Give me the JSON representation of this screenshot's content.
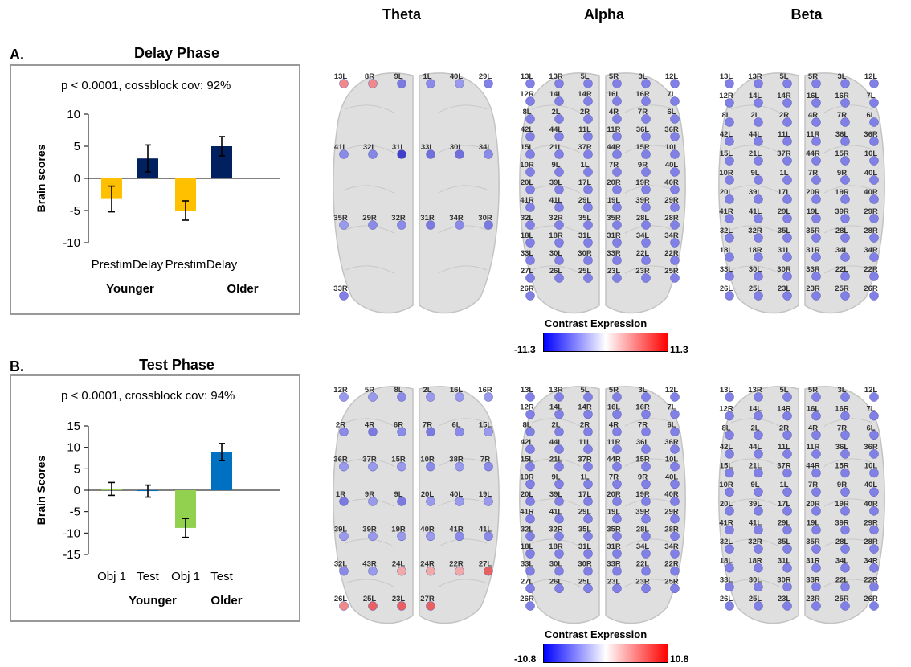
{
  "column_titles": [
    "Theta",
    "Alpha",
    "Beta"
  ],
  "panelA": {
    "label": "A.",
    "title": "Delay Phase",
    "stats": "p < 0.0001, cossblock cov: 92%",
    "colorbar": {
      "label": "Contrast Expression",
      "min": "-11.3",
      "max": "11.3"
    }
  },
  "panelB": {
    "label": "B.",
    "title": "Test Phase",
    "stats": "p < 0.0001, crossblock cov: 94%",
    "colorbar": {
      "label": "Contrast Expression",
      "min": "-10.8",
      "max": "10.8"
    }
  },
  "chart_data": [
    {
      "type": "bar",
      "ylabel": "Brain scores",
      "ylim": [
        -10,
        10
      ],
      "yticks": [
        10,
        5,
        0,
        -5,
        -10
      ],
      "categories": [
        "Prestim",
        "Delay",
        "Prestim",
        "Delay"
      ],
      "groups": [
        "Younger",
        "Older"
      ],
      "values": [
        -3.2,
        3.1,
        -5.0,
        5.0
      ],
      "errors": [
        2.0,
        2.1,
        1.5,
        1.5
      ],
      "colors": [
        "#FFC000",
        "#002060",
        "#FFC000",
        "#002060"
      ],
      "grid": false
    },
    {
      "type": "bar",
      "ylabel": "Brain Scores",
      "ylim": [
        -15,
        15
      ],
      "yticks": [
        15,
        10,
        5,
        0,
        -5,
        -10,
        -15
      ],
      "categories": [
        "Obj 1",
        "Test",
        "Obj 1",
        "Test"
      ],
      "groups": [
        "Younger",
        "Older"
      ],
      "values": [
        0.3,
        -0.2,
        -8.8,
        8.9
      ],
      "errors": [
        1.5,
        1.4,
        2.2,
        2.0
      ],
      "colors": [
        "#92D050",
        "#0070C0",
        "#92D050",
        "#0070C0"
      ],
      "grid": false
    }
  ],
  "brain_maps": {
    "theta_delay": [
      {
        "label": "13L",
        "c": "#f08a8a"
      },
      {
        "label": "8R",
        "c": "#f08a8a"
      },
      {
        "label": "9L",
        "c": "#7a7ae0"
      },
      {
        "label": "1L",
        "c": "#8a8ae8"
      },
      {
        "label": "40L",
        "c": "#9a9aec"
      },
      {
        "label": "29L",
        "c": "#8080e6"
      },
      {
        "label": "41L",
        "c": "#8a8ae8"
      },
      {
        "label": "32L",
        "c": "#8686e6"
      },
      {
        "label": "31L",
        "c": "#4040cc"
      },
      {
        "label": "33L",
        "c": "#7070dc"
      },
      {
        "label": "30L",
        "c": "#7070dc"
      },
      {
        "label": "34L",
        "c": "#8a8ae8"
      },
      {
        "label": "35R",
        "c": "#9a9aec"
      },
      {
        "label": "29R",
        "c": "#8a8ae8"
      },
      {
        "label": "32R",
        "c": "#8a8ae8"
      },
      {
        "label": "31R",
        "c": "#7a7ae0"
      },
      {
        "label": "34R",
        "c": "#8a8ae8"
      },
      {
        "label": "30R",
        "c": "#7a7ae0"
      },
      {
        "label": "33R",
        "c": "#8080e6"
      }
    ],
    "theta_test": [
      {
        "label": "12R",
        "c": "#9a9aec"
      },
      {
        "label": "5R",
        "c": "#9a9aec"
      },
      {
        "label": "8L",
        "c": "#8a8ae8"
      },
      {
        "label": "2L",
        "c": "#9a9aec"
      },
      {
        "label": "16L",
        "c": "#9a9aec"
      },
      {
        "label": "16R",
        "c": "#9a9aec"
      },
      {
        "label": "2R",
        "c": "#8a8ae8"
      },
      {
        "label": "4R",
        "c": "#7a7ae0"
      },
      {
        "label": "6R",
        "c": "#8a8ae8"
      },
      {
        "label": "7R",
        "c": "#7a7ae0"
      },
      {
        "label": "6L",
        "c": "#8a8ae8"
      },
      {
        "label": "15L",
        "c": "#9a9aec"
      },
      {
        "label": "36R",
        "c": "#9a9aec"
      },
      {
        "label": "37R",
        "c": "#9a9aec"
      },
      {
        "label": "15R",
        "c": "#9a9aec"
      },
      {
        "label": "10R",
        "c": "#8a8ae8"
      },
      {
        "label": "38R",
        "c": "#9a9aec"
      },
      {
        "label": "7R",
        "c": "#8a8ae8"
      },
      {
        "label": "1R",
        "c": "#7a7ae0"
      },
      {
        "label": "9R",
        "c": "#9a9aec"
      },
      {
        "label": "9L",
        "c": "#7a7ae0"
      },
      {
        "label": "20L",
        "c": "#9a9aec"
      },
      {
        "label": "40L",
        "c": "#9a9aec"
      },
      {
        "label": "19L",
        "c": "#9a9aec"
      },
      {
        "label": "39L",
        "c": "#9a9aec"
      },
      {
        "label": "39R",
        "c": "#9a9aec"
      },
      {
        "label": "19R",
        "c": "#9a9aec"
      },
      {
        "label": "40R",
        "c": "#9a9aec"
      },
      {
        "label": "41R",
        "c": "#8a8ae8"
      },
      {
        "label": "41L",
        "c": "#8a8ae8"
      },
      {
        "label": "32L",
        "c": "#8a8ae8"
      },
      {
        "label": "43R",
        "c": "#9a9aec"
      },
      {
        "label": "24L",
        "c": "#f0a8a8"
      },
      {
        "label": "24R",
        "c": "#f0a8a8"
      },
      {
        "label": "22R",
        "c": "#f0a8a8"
      },
      {
        "label": "27L",
        "c": "#e86060"
      },
      {
        "label": "26L",
        "c": "#f08a8a"
      },
      {
        "label": "25L",
        "c": "#e86060"
      },
      {
        "label": "23L",
        "c": "#e86060"
      },
      {
        "label": "27R",
        "c": "#e86060"
      }
    ],
    "alpha_labels": [
      "13L",
      "13R",
      "5L",
      "5R",
      "3L",
      "12L",
      "12R",
      "14L",
      "14R",
      "16L",
      "16R",
      "7L",
      "8L",
      "2L",
      "2R",
      "4R",
      "7R",
      "6L",
      "42L",
      "44L",
      "11L",
      "11R",
      "36L",
      "36R",
      "15L",
      "21L",
      "37R",
      "44R",
      "15R",
      "10L",
      "10R",
      "9L",
      "1L",
      "7R",
      "9R",
      "40L",
      "20L",
      "39L",
      "17L",
      "20R",
      "19R",
      "40R",
      "41R",
      "41L",
      "29L",
      "19L",
      "39R",
      "29R",
      "32L",
      "32R",
      "35L",
      "35R",
      "28L",
      "28R",
      "18L",
      "18R",
      "31L",
      "31R",
      "34L",
      "34R",
      "33L",
      "30L",
      "30R",
      "33R",
      "22L",
      "22R",
      "27L",
      "26L",
      "25L",
      "23L",
      "23R",
      "25R",
      "26R"
    ],
    "beta_labels": [
      "13L",
      "13R",
      "5L",
      "5R",
      "3L",
      "12L",
      "12R",
      "14L",
      "14R",
      "16L",
      "16R",
      "7L",
      "8L",
      "2L",
      "2R",
      "4R",
      "7R",
      "6L",
      "42L",
      "44L",
      "11L",
      "11R",
      "36L",
      "36R",
      "15L",
      "21L",
      "37R",
      "44R",
      "15R",
      "10L",
      "10R",
      "9L",
      "1L",
      "7R",
      "9R",
      "40L",
      "20L",
      "39L",
      "17L",
      "20R",
      "19R",
      "40R",
      "41R",
      "41L",
      "29L",
      "19L",
      "39R",
      "29R",
      "32L",
      "32R",
      "35L",
      "35R",
      "28L",
      "28R",
      "18L",
      "18R",
      "31L",
      "31R",
      "34L",
      "34R",
      "33L",
      "30L",
      "30R",
      "33R",
      "22L",
      "22R",
      "26L",
      "25L",
      "23L",
      "23R",
      "25R",
      "26R"
    ]
  }
}
